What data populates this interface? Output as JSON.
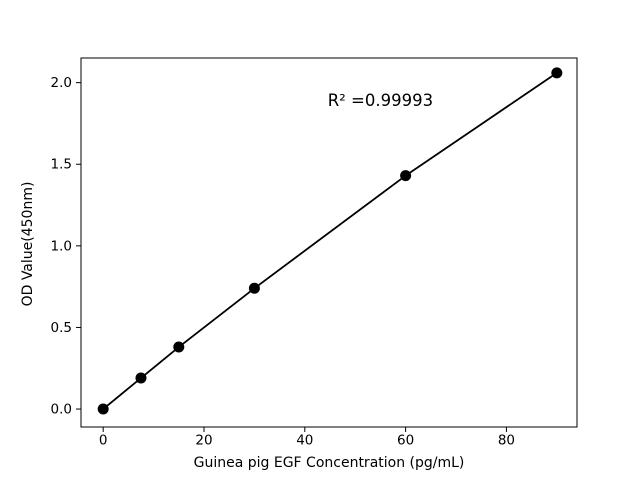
{
  "figure": {
    "background": "#ffffff"
  },
  "chart_data": {
    "type": "line",
    "xlabel": "Guinea pig EGF Concentration (pg/mL)",
    "ylabel": "OD Value(450nm)",
    "x": [
      0,
      7.5,
      15,
      30,
      60,
      90
    ],
    "y": [
      0.0,
      0.19,
      0.38,
      0.74,
      1.43,
      2.06
    ],
    "annotation": {
      "text": "R² =0.99993",
      "x": 55,
      "y": 1.89
    },
    "xticks": [
      0,
      20,
      40,
      60,
      80
    ],
    "xtick_labels": [
      "0",
      "20",
      "40",
      "60",
      "80"
    ],
    "yticks": [
      0.0,
      0.5,
      1.0,
      1.5,
      2.0
    ],
    "ytick_labels": [
      "0.0",
      "0.5",
      "1.0",
      "1.5",
      "2.0"
    ],
    "xlim": [
      -4.4,
      94.0
    ],
    "ylim": [
      -0.11,
      2.151
    ],
    "line_color": "#000000",
    "marker_color": "#000000",
    "spine_color": "#000000",
    "grid": false,
    "legend_position": "none"
  }
}
